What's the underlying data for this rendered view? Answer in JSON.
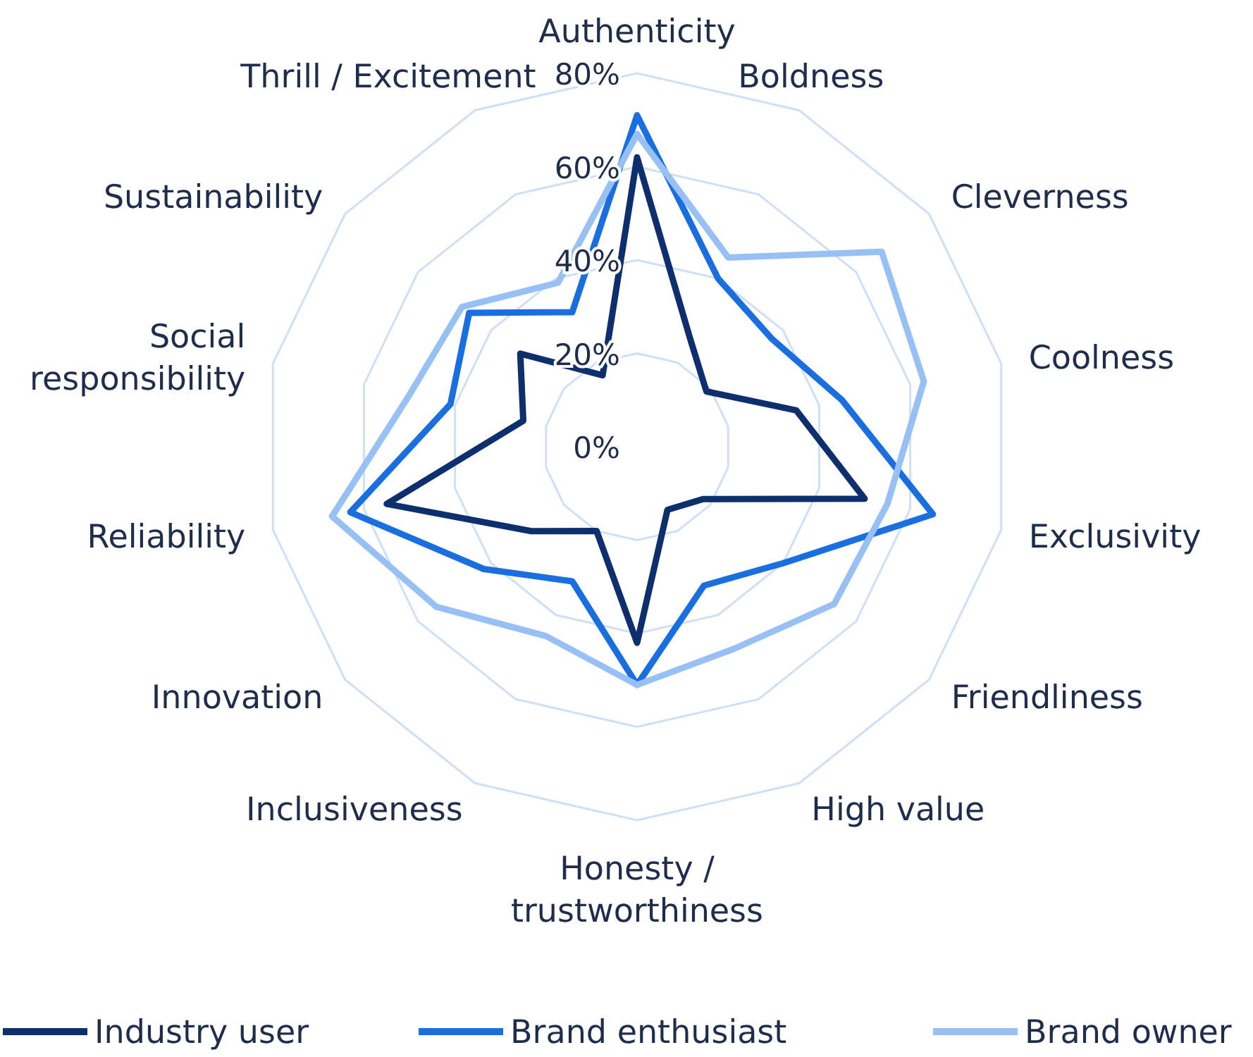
{
  "chart_data": {
    "type": "radar",
    "categories": [
      "Authenticity",
      "Boldness",
      "Cleverness",
      "Coolness",
      "Exclusivity",
      "Friendliness",
      "High value",
      "Honesty / trustworthiness",
      "Inclusiveness",
      "Innovation",
      "Reliability",
      "Social responsibility",
      "Sustainability",
      "Thrill / Excitement"
    ],
    "series": [
      {
        "name": "Industry user",
        "color": "#0d2f6e",
        "values": [
          62,
          26,
          19,
          35,
          50,
          18,
          15,
          42,
          20,
          29,
          55,
          25,
          32,
          17
        ]
      },
      {
        "name": "Brand enthusiast",
        "color": "#1a6fe0",
        "values": [
          71,
          40,
          37,
          45,
          65,
          40,
          33,
          51,
          32,
          42,
          63,
          41,
          46,
          32
        ]
      },
      {
        "name": "Brand owner",
        "color": "#97c0f5",
        "values": [
          67,
          45,
          67,
          63,
          55,
          54,
          48,
          51,
          45,
          55,
          67,
          50,
          48,
          39
        ]
      }
    ],
    "ylim": [
      0,
      80
    ],
    "yticks": [
      {
        "value": 0,
        "label": "0%"
      },
      {
        "value": 20,
        "label": "20%"
      },
      {
        "value": 40,
        "label": "40%"
      },
      {
        "value": 60,
        "label": "60%"
      },
      {
        "value": 80,
        "label": "80%"
      }
    ],
    "grid": true,
    "legend": "bottom"
  }
}
